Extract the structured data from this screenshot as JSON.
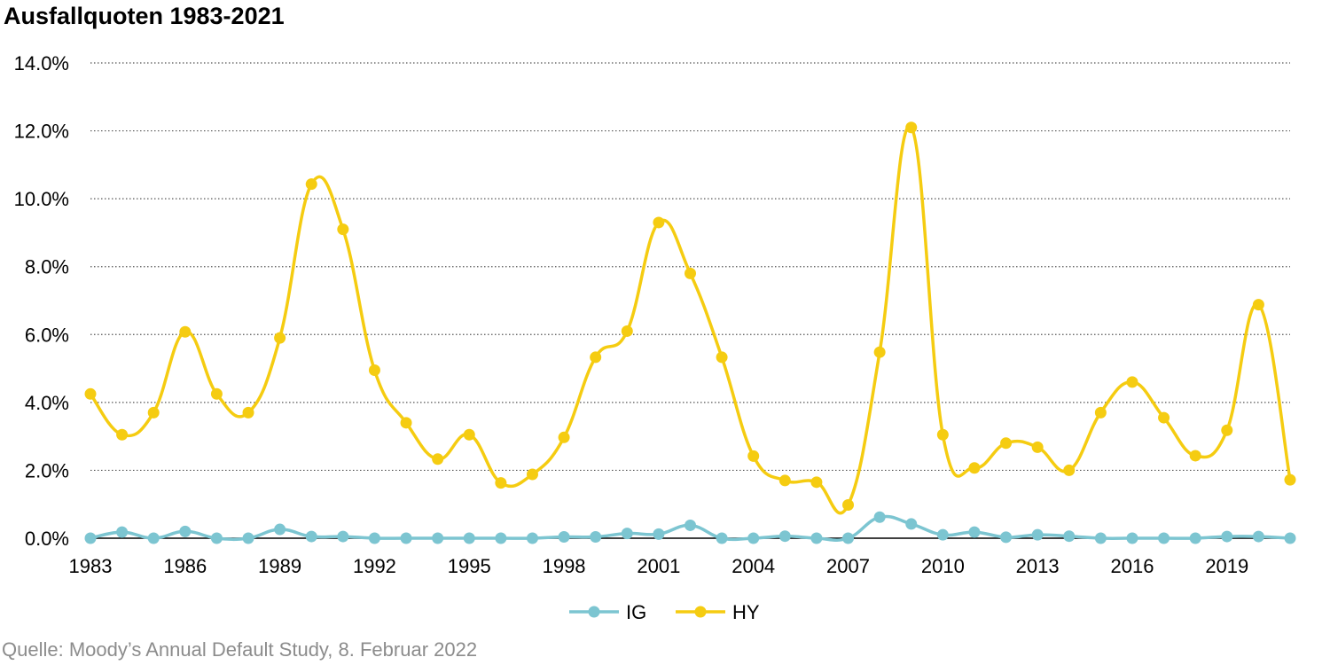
{
  "chart_data": {
    "type": "line",
    "title": "Ausfallquoten 1983-2021",
    "source": "Quelle: Moody’s Annual Default Study, 8. Februar 2022",
    "x": [
      1983,
      1984,
      1985,
      1986,
      1987,
      1988,
      1989,
      1990,
      1991,
      1992,
      1993,
      1994,
      1995,
      1996,
      1997,
      1998,
      1999,
      2000,
      2001,
      2002,
      2003,
      2004,
      2005,
      2006,
      2007,
      2008,
      2009,
      2010,
      2011,
      2012,
      2013,
      2014,
      2015,
      2016,
      2017,
      2018,
      2019,
      2020,
      2021
    ],
    "x_tick_labels": [
      "1983",
      "1986",
      "1989",
      "1992",
      "1995",
      "1998",
      "2001",
      "2004",
      "2007",
      "2010",
      "2013",
      "2016",
      "2019"
    ],
    "y_tick_labels": [
      "0.0%",
      "2.0%",
      "4.0%",
      "6.0%",
      "8.0%",
      "10.0%",
      "12.0%",
      "14.0%"
    ],
    "ylim": [
      0,
      14
    ],
    "grid": true,
    "legend_position": "bottom",
    "series": [
      {
        "name": "IG",
        "color": "#7cc5d1",
        "values": [
          0.0,
          0.18,
          0.0,
          0.2,
          0.0,
          0.0,
          0.26,
          0.05,
          0.05,
          0.0,
          0.0,
          0.0,
          0.0,
          0.0,
          0.0,
          0.04,
          0.04,
          0.14,
          0.12,
          0.38,
          0.0,
          0.0,
          0.06,
          0.0,
          0.0,
          0.62,
          0.42,
          0.1,
          0.18,
          0.03,
          0.1,
          0.06,
          0.0,
          0.0,
          0.0,
          0.0,
          0.05,
          0.05,
          0.0
        ]
      },
      {
        "name": "HY",
        "color": "#f5cc11",
        "values": [
          4.25,
          3.05,
          3.7,
          6.08,
          4.25,
          3.7,
          5.9,
          10.43,
          9.1,
          4.95,
          3.4,
          2.33,
          3.05,
          1.63,
          1.88,
          2.97,
          5.33,
          6.1,
          9.3,
          7.8,
          5.33,
          2.42,
          1.7,
          1.65,
          0.98,
          5.48,
          12.1,
          3.05,
          2.07,
          2.8,
          2.68,
          2.0,
          3.7,
          4.6,
          3.55,
          2.43,
          3.18,
          6.88,
          1.72
        ]
      }
    ]
  }
}
